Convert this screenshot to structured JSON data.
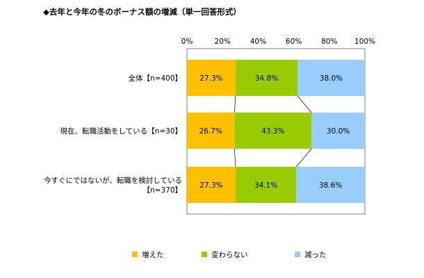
{
  "chart_data": {
    "type": "bar",
    "orientation": "horizontal",
    "stacked": "percent",
    "title": "◆去年と今年の冬のボーナス額の増減（単一回答形式）",
    "xlabel": "",
    "ylabel": "",
    "xlim": [
      0,
      100
    ],
    "x_ticks": [
      "0%",
      "20%",
      "40%",
      "60%",
      "80%",
      "100%"
    ],
    "categories": [
      [
        "全体【n=400】"
      ],
      [
        "現在、転職活動をしている【n=30】"
      ],
      [
        "今すぐにではないが、転職を検討している",
        "【n=370】"
      ]
    ],
    "series": [
      {
        "name": "増えた",
        "color": "#ffc000",
        "values": [
          27.3,
          26.7,
          27.3
        ],
        "labels": [
          "27.3%",
          "26.7%",
          "27.3%"
        ]
      },
      {
        "name": "変わらない",
        "color": "#99cc00",
        "values": [
          34.8,
          43.3,
          34.1
        ],
        "labels": [
          "34.8%",
          "43.3%",
          "34.1%"
        ]
      },
      {
        "name": "減った",
        "color": "#99ccff",
        "values": [
          38.0,
          30.0,
          38.6
        ],
        "labels": [
          "38.0%",
          "30.0%",
          "38.6%"
        ]
      }
    ],
    "legend_position": "bottom",
    "grid": false,
    "series_lines": true
  }
}
